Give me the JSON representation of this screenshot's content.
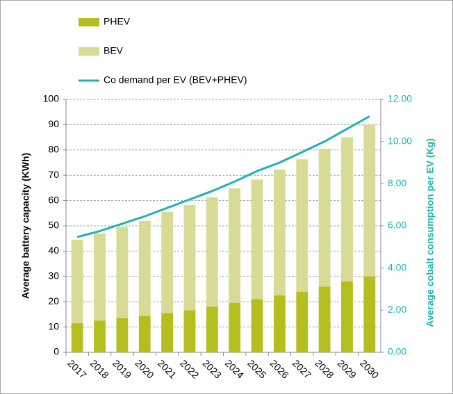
{
  "chart_data": {
    "type": "bar",
    "stacked": true,
    "categories": [
      "2017",
      "2018",
      "2019",
      "2020",
      "2021",
      "2022",
      "2023",
      "2024",
      "2025",
      "2026",
      "2027",
      "2028",
      "2029",
      "2030"
    ],
    "series": [
      {
        "name": "PHEV",
        "color": "#b4bf1f",
        "values": [
          11.5,
          12.5,
          13.5,
          14.3,
          15.5,
          16.7,
          18,
          19.5,
          21,
          22.5,
          24,
          26,
          28,
          30
        ]
      },
      {
        "name": "BEV",
        "color": "#d7db95",
        "values": [
          33,
          34.5,
          36,
          37.7,
          40,
          41.6,
          43.3,
          45.3,
          47.3,
          49.7,
          52.3,
          54.5,
          57,
          60
        ]
      },
      {
        "name": "Co demand per EV (BEV+PHEV)",
        "color": "#1fb2b4",
        "type": "line",
        "axis": "y2",
        "values": [
          5.47,
          5.75,
          6.1,
          6.45,
          6.85,
          7.25,
          7.65,
          8.1,
          8.6,
          9.0,
          9.5,
          10.0,
          10.6,
          11.2
        ]
      }
    ],
    "ylabel": "Average battery capacity (KWh)",
    "y2label": "Average cobalt consumption per EV (Kg)",
    "ylim": [
      0,
      100
    ],
    "yticks": [
      0,
      10,
      20,
      30,
      40,
      50,
      60,
      70,
      80,
      90,
      100
    ],
    "y2lim": [
      0,
      12
    ],
    "y2ticks": [
      {
        "value": 0,
        "label": "0.00"
      },
      {
        "value": 2,
        "label": "2.00"
      },
      {
        "value": 4,
        "label": "4.00"
      },
      {
        "value": 6,
        "label": "6.00"
      },
      {
        "value": 8,
        "label": "8.00"
      },
      {
        "value": 10,
        "label": "10.00"
      },
      {
        "value": 12,
        "label": "12.00"
      }
    ],
    "grid": true,
    "legend": "top-left"
  }
}
